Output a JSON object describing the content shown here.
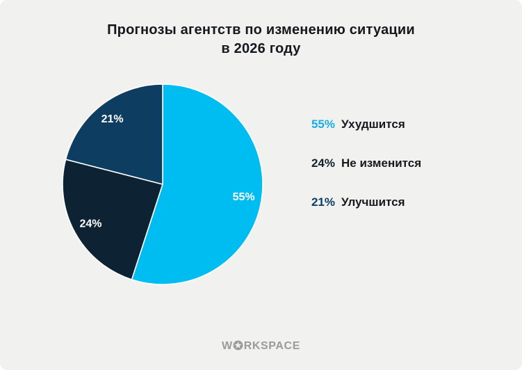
{
  "title": {
    "line1": "Прогнозы агентств по изменению ситуации",
    "line2": "в 2026 году"
  },
  "chart_data": {
    "type": "pie",
    "title": "Прогнозы агентств по изменению ситуации в 2026 году",
    "categories": [
      "Ухудшится",
      "Не изменится",
      "Улучшится"
    ],
    "values": [
      55,
      24,
      21
    ],
    "slice_labels": [
      "55%",
      "24%",
      "21%"
    ],
    "colors": [
      "#00BDF1",
      "#0D2334",
      "#0E3D62"
    ],
    "start_angle_deg": 0,
    "direction": "clockwise",
    "slice_label_color": "#FFFFFF",
    "separator_color": "#FFFFFF",
    "legend_position": "right"
  },
  "legend": {
    "items": [
      {
        "value": "55%",
        "label": "Ухудшится",
        "color": "#14AEE3"
      },
      {
        "value": "24%",
        "label": "Не изменится",
        "color": "#13222E"
      },
      {
        "value": "21%",
        "label": "Улучшится",
        "color": "#0E3D62"
      }
    ]
  },
  "footer": {
    "brand_prefix": "W",
    "brand_suffix": "RKSPACE",
    "brand_icon": "circled-star",
    "brand_color": "#9B9B9B"
  },
  "colors": {
    "background": "#F1F1EF",
    "title_text": "#15181D"
  }
}
